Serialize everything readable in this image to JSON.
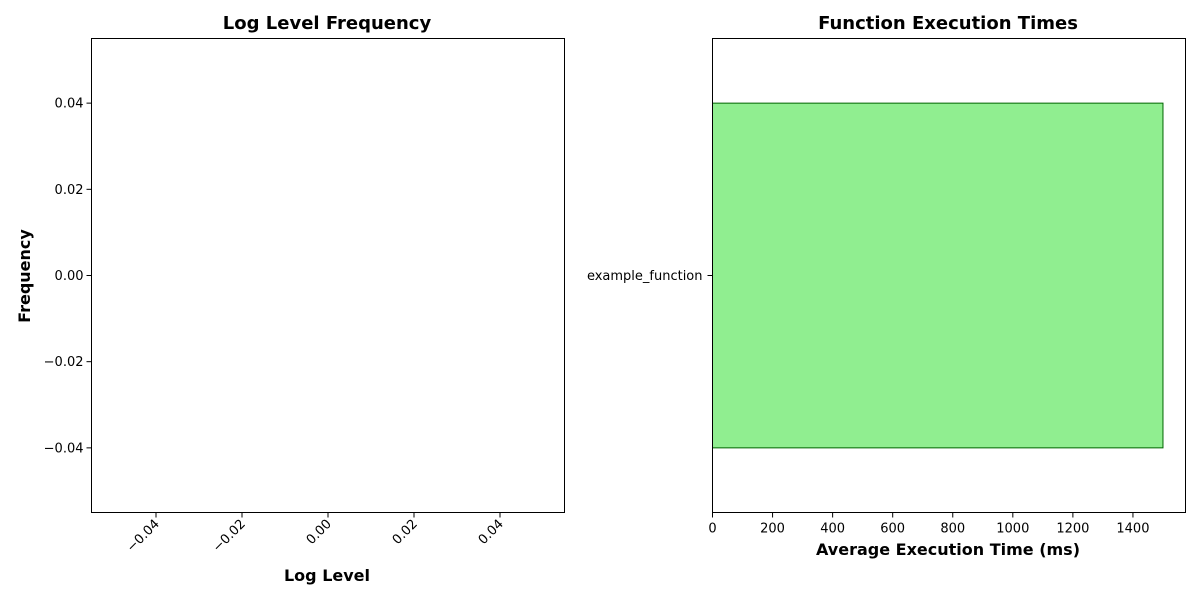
{
  "chart_data": [
    {
      "type": "bar",
      "title": "Log Level Frequency",
      "xlabel": "Log Level",
      "ylabel": "Frequency",
      "categories": [],
      "values": [],
      "xlim": [
        -0.055,
        0.055
      ],
      "ylim": [
        -0.055,
        0.055
      ],
      "x_ticks": [
        "−0.04",
        "−0.02",
        "0.00",
        "0.02",
        "0.04"
      ],
      "x_tick_values": [
        -0.04,
        -0.02,
        0.0,
        0.02,
        0.04
      ],
      "x_tick_rotation_deg": 45,
      "y_ticks": [
        "−0.04",
        "−0.02",
        "0.00",
        "0.02",
        "0.04"
      ],
      "y_tick_values": [
        -0.04,
        -0.02,
        0.0,
        0.02,
        0.04
      ],
      "grid": false
    },
    {
      "type": "bar",
      "orientation": "horizontal",
      "title": "Function Execution Times",
      "xlabel": "Average Execution Time (ms)",
      "ylabel": "",
      "categories": [
        "example_function"
      ],
      "values": [
        1500
      ],
      "xlim": [
        0,
        1575
      ],
      "x_ticks": [
        "0",
        "200",
        "400",
        "600",
        "800",
        "1000",
        "1200",
        "1400"
      ],
      "x_tick_values": [
        0,
        200,
        400,
        600,
        800,
        1000,
        1200,
        1400
      ],
      "bar_color": "#90ee90",
      "bar_edge_color": "#006400",
      "grid": false
    }
  ]
}
